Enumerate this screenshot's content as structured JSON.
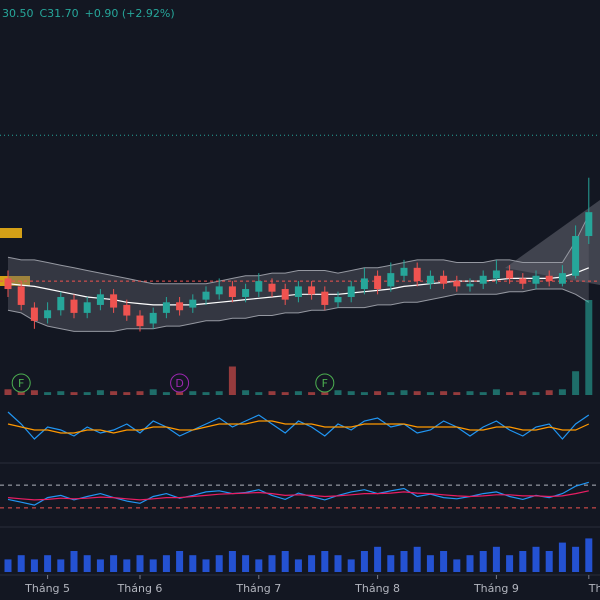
{
  "chart_data": {
    "type": "candlestick",
    "header": [
      "30.50",
      "C31.70",
      "+0.90 (+2.92%)"
    ],
    "header_color": "#26a69a",
    "categories": [
      null,
      null,
      null,
      "Tháng 5",
      null,
      null,
      null,
      null,
      null,
      null,
      "Tháng 6",
      null,
      null,
      null,
      null,
      null,
      null,
      null,
      null,
      "Tháng 7",
      null,
      null,
      null,
      null,
      null,
      null,
      null,
      null,
      "Tháng 8",
      null,
      null,
      null,
      null,
      null,
      null,
      null,
      null,
      "Tháng 9",
      null,
      null,
      null,
      null,
      null,
      null,
      "Th"
    ],
    "open": [
      29.2,
      28.9,
      28.1,
      27.7,
      28.0,
      28.4,
      27.9,
      28.2,
      28.6,
      28.2,
      27.8,
      27.5,
      27.9,
      28.3,
      28.1,
      28.4,
      28.6,
      28.9,
      28.5,
      28.7,
      29.0,
      28.8,
      28.5,
      28.9,
      28.7,
      28.3,
      28.5,
      28.8,
      29.3,
      28.9,
      29.3,
      29.6,
      29.0,
      29.3,
      29.1,
      28.9,
      29.0,
      29.2,
      29.5,
      29.2,
      29.0,
      29.3,
      29.0,
      29.3,
      30.8
    ],
    "high": [
      29.5,
      29.1,
      28.3,
      28.3,
      28.7,
      28.6,
      28.5,
      28.8,
      28.8,
      28.4,
      28.0,
      28.1,
      28.5,
      28.5,
      28.6,
      28.9,
      29.2,
      29.1,
      29.0,
      29.4,
      29.2,
      29.0,
      29.1,
      29.1,
      28.9,
      28.7,
      29.1,
      29.6,
      29.5,
      29.8,
      29.9,
      29.8,
      29.5,
      29.5,
      29.3,
      29.2,
      29.5,
      29.9,
      29.7,
      29.4,
      29.5,
      29.5,
      29.7,
      31.2,
      33.0
    ],
    "low": [
      28.5,
      28.0,
      27.3,
      27.5,
      27.8,
      27.7,
      27.7,
      28.0,
      27.9,
      27.6,
      27.2,
      27.3,
      27.7,
      27.8,
      27.9,
      28.2,
      28.4,
      28.3,
      28.3,
      28.5,
      28.5,
      28.2,
      28.3,
      28.4,
      28.0,
      28.1,
      28.3,
      28.6,
      28.6,
      28.7,
      29.1,
      28.9,
      28.8,
      28.8,
      28.7,
      28.7,
      28.8,
      29.0,
      29.0,
      28.8,
      28.8,
      28.9,
      28.9,
      29.2,
      30.5
    ],
    "close": [
      28.8,
      28.2,
      27.6,
      28.0,
      28.5,
      27.9,
      28.3,
      28.6,
      28.1,
      27.8,
      27.4,
      27.9,
      28.3,
      28.0,
      28.4,
      28.7,
      28.9,
      28.5,
      28.8,
      29.1,
      28.7,
      28.4,
      28.9,
      28.6,
      28.2,
      28.5,
      28.9,
      29.2,
      28.8,
      29.4,
      29.6,
      29.1,
      29.3,
      29.0,
      28.9,
      29.0,
      29.3,
      29.5,
      29.2,
      29.0,
      29.3,
      29.1,
      29.4,
      30.8,
      31.7
    ],
    "up_color": "#26a69a",
    "down_color": "#ef5350",
    "ylim": [
      26.5,
      34.8
    ],
    "bands": {
      "upper": [
        30.0,
        29.9,
        29.9,
        29.8,
        29.7,
        29.6,
        29.5,
        29.4,
        29.3,
        29.2,
        29.1,
        29.0,
        29.0,
        29.0,
        29.0,
        29.0,
        29.1,
        29.2,
        29.3,
        29.3,
        29.4,
        29.4,
        29.5,
        29.5,
        29.5,
        29.4,
        29.5,
        29.6,
        29.6,
        29.7,
        29.8,
        29.9,
        29.9,
        29.9,
        29.8,
        29.8,
        29.8,
        29.9,
        29.9,
        29.8,
        29.8,
        29.8,
        29.8,
        30.6,
        31.6
      ],
      "middle": [
        29.0,
        28.95,
        28.9,
        28.8,
        28.7,
        28.6,
        28.5,
        28.45,
        28.4,
        28.3,
        28.25,
        28.2,
        28.2,
        28.2,
        28.2,
        28.25,
        28.3,
        28.35,
        28.4,
        28.45,
        28.5,
        28.55,
        28.6,
        28.6,
        28.6,
        28.6,
        28.65,
        28.7,
        28.75,
        28.8,
        28.9,
        28.95,
        29.0,
        29.05,
        29.1,
        29.1,
        29.1,
        29.15,
        29.2,
        29.2,
        29.2,
        29.2,
        29.25,
        29.4,
        29.6
      ],
      "lower": [
        28.0,
        27.9,
        27.6,
        27.4,
        27.3,
        27.2,
        27.2,
        27.2,
        27.2,
        27.3,
        27.3,
        27.3,
        27.4,
        27.4,
        27.5,
        27.6,
        27.6,
        27.7,
        27.7,
        27.8,
        27.8,
        27.9,
        27.9,
        28.0,
        28.0,
        28.1,
        28.1,
        28.1,
        28.2,
        28.2,
        28.3,
        28.3,
        28.4,
        28.5,
        28.6,
        28.6,
        28.6,
        28.6,
        28.7,
        28.7,
        28.8,
        28.8,
        28.8,
        28.6,
        28.3
      ],
      "fill": "#5d606b",
      "line_color": "#9598a1",
      "middle_color": "#ffffff"
    },
    "price_line": {
      "value": 34.6,
      "color": "#26a69a"
    },
    "ref_line": {
      "value": 29.1,
      "color": "#ef5350"
    },
    "events": [
      null,
      "F",
      null,
      null,
      null,
      null,
      null,
      null,
      null,
      null,
      null,
      null,
      null,
      "D",
      null,
      null,
      null,
      null,
      null,
      null,
      null,
      null,
      null,
      null,
      "F",
      null,
      null,
      null,
      null,
      null,
      null,
      null,
      null,
      null,
      null,
      null,
      null,
      null,
      null,
      null,
      null,
      null,
      null,
      null,
      null
    ],
    "volume": {
      "values": [
        6,
        4,
        5,
        3,
        4,
        3,
        3,
        5,
        4,
        3,
        4,
        6,
        3,
        3,
        4,
        3,
        4,
        30,
        5,
        3,
        4,
        3,
        4,
        3,
        3,
        5,
        4,
        3,
        4,
        3,
        5,
        4,
        3,
        4,
        3,
        4,
        3,
        6,
        3,
        4,
        3,
        5,
        6,
        25,
        100
      ],
      "ylim": [
        0,
        100
      ]
    },
    "indicator1": {
      "ylim": [
        -1,
        1
      ],
      "series": [
        {
          "color": "#2196f3",
          "values": [
            0.6,
            0.2,
            -0.3,
            0.1,
            0.0,
            -0.2,
            0.1,
            -0.1,
            0.0,
            0.2,
            -0.1,
            0.3,
            0.1,
            -0.2,
            0.0,
            0.2,
            0.4,
            0.1,
            0.3,
            0.5,
            0.2,
            -0.1,
            0.3,
            0.1,
            -0.2,
            0.2,
            0.0,
            0.3,
            0.4,
            0.1,
            0.2,
            -0.1,
            0.0,
            0.3,
            0.1,
            -0.2,
            0.1,
            0.3,
            0.0,
            -0.2,
            0.1,
            0.2,
            -0.3,
            0.2,
            0.5
          ]
        },
        {
          "color": "#ff9800",
          "values": [
            0.2,
            0.1,
            0.0,
            0.0,
            -0.1,
            -0.1,
            0.0,
            0.0,
            -0.1,
            0.0,
            0.0,
            0.1,
            0.1,
            0.0,
            0.0,
            0.1,
            0.2,
            0.2,
            0.2,
            0.3,
            0.3,
            0.2,
            0.2,
            0.2,
            0.1,
            0.1,
            0.1,
            0.2,
            0.2,
            0.2,
            0.2,
            0.1,
            0.1,
            0.1,
            0.1,
            0.0,
            0.0,
            0.1,
            0.1,
            0.0,
            0.0,
            0.1,
            0.0,
            0.0,
            0.2
          ]
        }
      ]
    },
    "indicator2": {
      "ylim": [
        0,
        100
      ],
      "levels": [
        70,
        30
      ],
      "level_colors": [
        "#b2b5be",
        "#ef5350"
      ],
      "series": [
        {
          "color": "#2196f3",
          "values": [
            45,
            40,
            35,
            48,
            52,
            44,
            50,
            55,
            48,
            42,
            38,
            50,
            55,
            47,
            52,
            58,
            60,
            55,
            57,
            62,
            52,
            45,
            56,
            50,
            44,
            52,
            58,
            62,
            55,
            60,
            64,
            50,
            54,
            48,
            46,
            50,
            55,
            58,
            50,
            45,
            52,
            48,
            55,
            68,
            75
          ]
        },
        {
          "color": "#e91e63",
          "values": [
            48,
            46,
            44,
            45,
            47,
            46,
            47,
            49,
            48,
            46,
            44,
            46,
            48,
            48,
            50,
            52,
            54,
            55,
            56,
            57,
            55,
            52,
            53,
            52,
            50,
            51,
            53,
            55,
            55,
            56,
            58,
            56,
            55,
            53,
            51,
            50,
            51,
            53,
            53,
            51,
            51,
            50,
            51,
            55,
            60
          ]
        }
      ]
    },
    "flow": {
      "ylim": [
        0,
        10
      ],
      "color": "#2962ff",
      "values": [
        3,
        4,
        3,
        4,
        3,
        5,
        4,
        3,
        4,
        3,
        4,
        3,
        4,
        5,
        4,
        3,
        4,
        5,
        4,
        3,
        4,
        5,
        3,
        4,
        5,
        4,
        3,
        5,
        6,
        4,
        5,
        6,
        4,
        5,
        3,
        4,
        5,
        6,
        4,
        5,
        6,
        5,
        7,
        6,
        8
      ]
    }
  }
}
